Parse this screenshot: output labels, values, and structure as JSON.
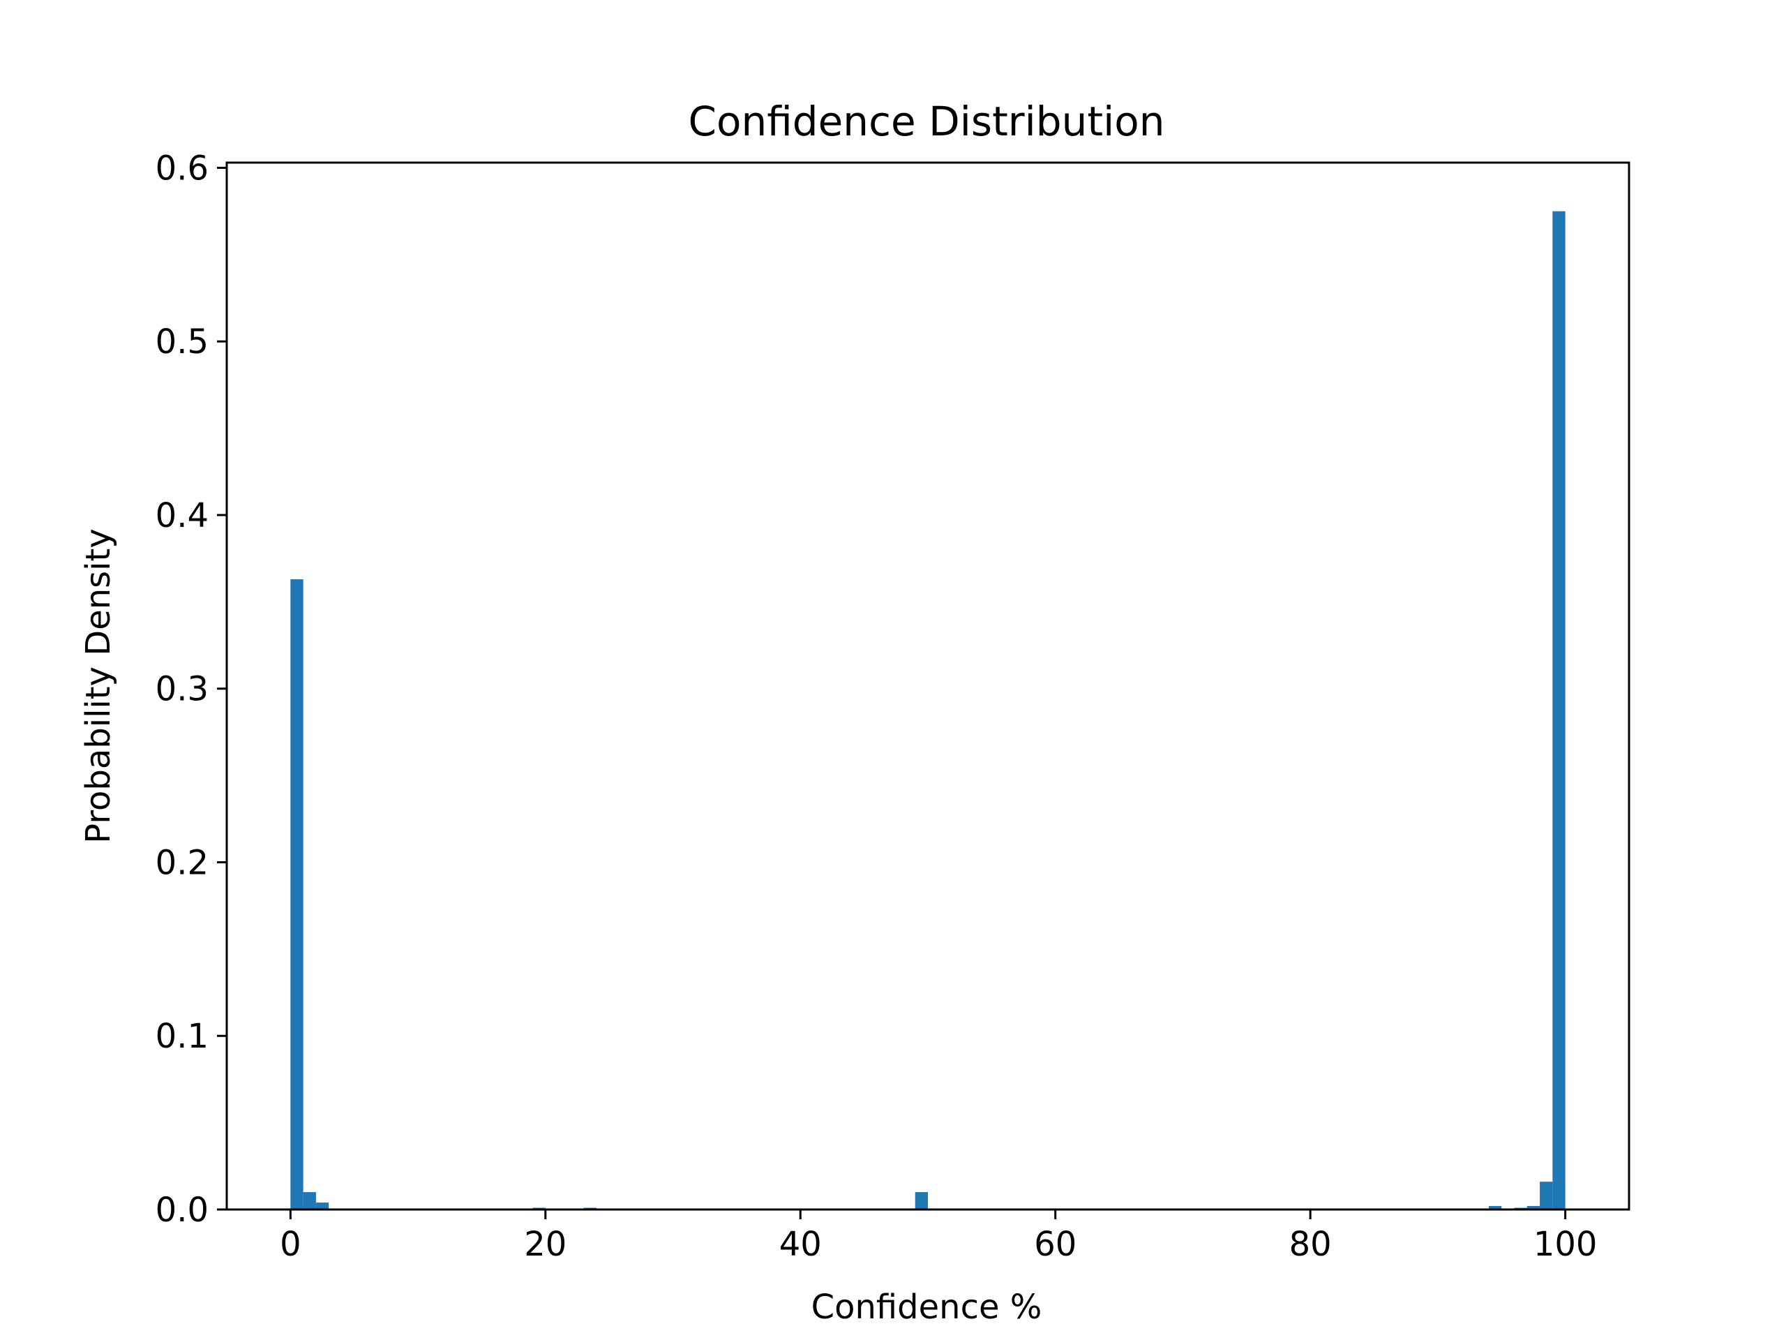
{
  "chart_data": {
    "type": "bar",
    "title": "Confidence Distribution",
    "xlabel": "Confidence %",
    "ylabel": "Probability Density",
    "xlim": [
      -5,
      105
    ],
    "ylim": [
      0,
      0.603
    ],
    "xticks": [
      0,
      20,
      40,
      60,
      80,
      100
    ],
    "yticks": [
      0.0,
      0.1,
      0.2,
      0.3,
      0.4,
      0.5,
      0.6
    ],
    "ytick_labels": [
      "0.0",
      "0.1",
      "0.2",
      "0.3",
      "0.4",
      "0.5",
      "0.6"
    ],
    "bin_width": 1,
    "bar_color": "#1f77b4",
    "grid": false,
    "bins": [
      {
        "x0": 0,
        "x1": 1,
        "value": 0.363
      },
      {
        "x0": 1,
        "x1": 2,
        "value": 0.01
      },
      {
        "x0": 2,
        "x1": 3,
        "value": 0.004
      },
      {
        "x0": 6,
        "x1": 7,
        "value": 0.0005
      },
      {
        "x0": 19,
        "x1": 20,
        "value": 0.001
      },
      {
        "x0": 23,
        "x1": 24,
        "value": 0.001
      },
      {
        "x0": 49,
        "x1": 50,
        "value": 0.01
      },
      {
        "x0": 94,
        "x1": 95,
        "value": 0.002
      },
      {
        "x0": 96,
        "x1": 97,
        "value": 0.001
      },
      {
        "x0": 97,
        "x1": 98,
        "value": 0.002
      },
      {
        "x0": 98,
        "x1": 99,
        "value": 0.016
      },
      {
        "x0": 99,
        "x1": 100,
        "value": 0.575
      }
    ]
  }
}
